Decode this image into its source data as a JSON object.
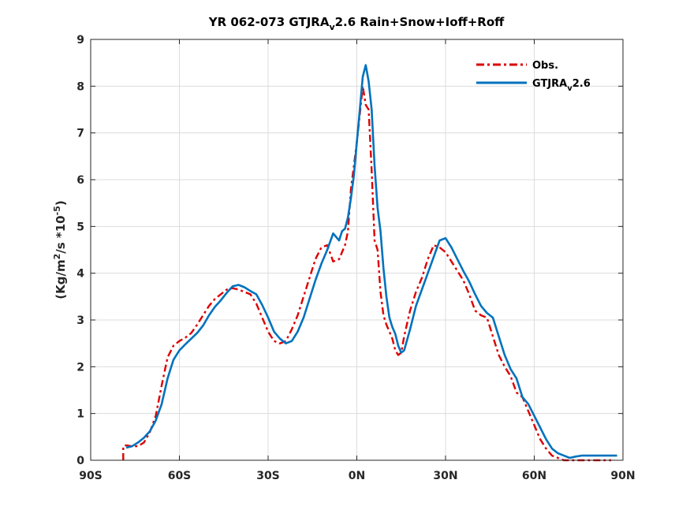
{
  "chart_data": {
    "type": "line",
    "title_parts": {
      "pre": "YR 062-073 GTJRA",
      "sub": "v",
      "post": "2.6  Rain+Snow+Ioff+Roff"
    },
    "ylabel_parts": {
      "a": "(Kg/m",
      "sup1": "2",
      "b": "/s *10",
      "sup2": "-5",
      "c": ")"
    },
    "xlabel": "",
    "xlim": [
      -90,
      90
    ],
    "ylim": [
      0,
      9
    ],
    "x_ticks": [
      -90,
      -60,
      -30,
      0,
      30,
      60,
      90
    ],
    "x_tick_labels": [
      "90S",
      "60S",
      "30S",
      "0N",
      "30N",
      "60N",
      "90N"
    ],
    "y_ticks": [
      0,
      1,
      2,
      3,
      4,
      5,
      6,
      7,
      8,
      9
    ],
    "y_tick_labels": [
      "0",
      "1",
      "2",
      "3",
      "4",
      "5",
      "6",
      "7",
      "8",
      "9"
    ],
    "grid": true,
    "legend_position": "top-right",
    "series": [
      {
        "name": "Obs.",
        "legend_label": {
          "text": "Obs.",
          "sub": ""
        },
        "color": "#dd0000",
        "style": "dashdot",
        "x": [
          -79,
          -79,
          -78,
          -76,
          -74,
          -72,
          -70,
          -68,
          -66,
          -64,
          -62,
          -60,
          -58,
          -56,
          -54,
          -52,
          -50,
          -48,
          -46,
          -44,
          -42,
          -40,
          -38,
          -36,
          -34,
          -32,
          -30,
          -28,
          -26,
          -24,
          -22,
          -20,
          -18,
          -16,
          -14,
          -12,
          -10,
          -8,
          -6,
          -4,
          -3,
          -2,
          -1,
          0,
          1,
          2,
          3,
          4,
          5,
          6,
          7,
          8,
          9,
          10,
          11,
          12,
          13,
          14,
          15,
          16,
          18,
          20,
          22,
          24,
          26,
          28,
          30,
          32,
          34,
          36,
          38,
          40,
          42,
          44,
          46,
          48,
          50,
          52,
          54,
          56,
          58,
          60,
          62,
          64,
          66,
          68,
          70,
          72,
          74,
          76,
          78,
          80,
          82,
          84,
          86
        ],
        "y": [
          0,
          0.3,
          0.32,
          0.3,
          0.3,
          0.38,
          0.6,
          0.95,
          1.6,
          2.2,
          2.45,
          2.55,
          2.62,
          2.72,
          2.9,
          3.1,
          3.3,
          3.45,
          3.55,
          3.65,
          3.68,
          3.65,
          3.6,
          3.55,
          3.35,
          3.05,
          2.75,
          2.55,
          2.5,
          2.55,
          2.8,
          3.1,
          3.5,
          3.9,
          4.3,
          4.55,
          4.6,
          4.25,
          4.3,
          4.6,
          4.9,
          5.8,
          6.3,
          6.8,
          7.4,
          8.0,
          7.6,
          7.5,
          6.2,
          4.7,
          4.5,
          3.6,
          3.1,
          2.9,
          2.75,
          2.6,
          2.35,
          2.25,
          2.3,
          2.65,
          3.2,
          3.6,
          3.9,
          4.3,
          4.6,
          4.55,
          4.45,
          4.25,
          4.05,
          3.85,
          3.55,
          3.2,
          3.1,
          3.05,
          2.65,
          2.25,
          2.0,
          1.8,
          1.45,
          1.35,
          1.05,
          0.75,
          0.45,
          0.25,
          0.1,
          0.05,
          0,
          0,
          0,
          0,
          0,
          0,
          0,
          0,
          0
        ]
      },
      {
        "name": "GTJRA v2.6",
        "legend_label": {
          "text": "GTJRA",
          "sub": "v",
          "post": "2.6"
        },
        "color": "#0072bd",
        "style": "solid",
        "x": [
          -78,
          -76,
          -74,
          -72,
          -70,
          -68,
          -66,
          -64,
          -62,
          -60,
          -58,
          -56,
          -54,
          -52,
          -50,
          -48,
          -46,
          -44,
          -42,
          -40,
          -38,
          -36,
          -34,
          -32,
          -30,
          -28,
          -26,
          -24,
          -22,
          -20,
          -18,
          -16,
          -14,
          -12,
          -10,
          -8,
          -6,
          -5,
          -4,
          -3,
          -2,
          -1,
          0,
          1,
          2,
          3,
          4,
          5,
          6,
          7,
          8,
          9,
          10,
          11,
          12,
          13,
          14,
          15,
          16,
          18,
          20,
          22,
          24,
          26,
          28,
          30,
          32,
          34,
          36,
          38,
          40,
          42,
          44,
          46,
          48,
          50,
          52,
          54,
          56,
          58,
          60,
          62,
          64,
          66,
          68,
          70,
          72,
          74,
          76,
          78,
          80,
          82,
          84,
          86,
          88
        ],
        "y": [
          0.27,
          0.3,
          0.38,
          0.48,
          0.62,
          0.85,
          1.2,
          1.75,
          2.15,
          2.35,
          2.48,
          2.6,
          2.72,
          2.88,
          3.1,
          3.28,
          3.42,
          3.58,
          3.72,
          3.75,
          3.7,
          3.62,
          3.55,
          3.32,
          3.05,
          2.75,
          2.6,
          2.5,
          2.55,
          2.75,
          3.05,
          3.45,
          3.85,
          4.2,
          4.5,
          4.85,
          4.7,
          4.9,
          4.95,
          5.2,
          5.6,
          6.1,
          6.8,
          7.5,
          8.2,
          8.45,
          8.1,
          7.5,
          6.3,
          5.4,
          4.9,
          4.1,
          3.5,
          3.05,
          2.85,
          2.7,
          2.45,
          2.3,
          2.35,
          2.8,
          3.3,
          3.65,
          4.0,
          4.35,
          4.7,
          4.75,
          4.55,
          4.3,
          4.05,
          3.82,
          3.55,
          3.3,
          3.15,
          3.05,
          2.65,
          2.25,
          1.95,
          1.75,
          1.35,
          1.2,
          0.95,
          0.7,
          0.45,
          0.25,
          0.15,
          0.1,
          0.05,
          0.08,
          0.1,
          0.1,
          0.1,
          0.1,
          0.1,
          0.1,
          0.1
        ]
      }
    ]
  }
}
